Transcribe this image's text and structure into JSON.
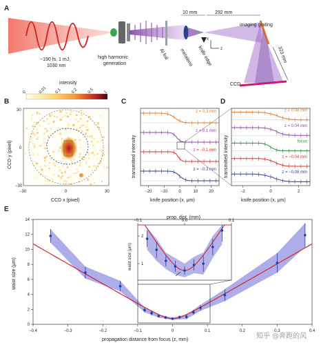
{
  "panel_labels": {
    "a": "A",
    "b": "B",
    "c": "C",
    "d": "D",
    "e": "E"
  },
  "setup": {
    "laser": "~190 fs, 1 mJ,",
    "laser2": "1030 nm",
    "hhg": "high harmonic",
    "hhg2": "generation",
    "al_foil": "Al foil",
    "metalens": "metalens",
    "knife": "knife edge",
    "d1": "10 mm",
    "d2": "292 mm",
    "d3": "323 mm",
    "grating": "imaging grating",
    "ccd": "CCD",
    "ax_x": "x",
    "ax_z": "z"
  },
  "panel_b": {
    "colorbar_title": "intensity",
    "colorbar_ticks": [
      "0",
      "0.01",
      "0.1",
      "0.2",
      "0.5",
      "1"
    ],
    "colors": [
      "#fffbe6",
      "#fde9a8",
      "#fbc96a",
      "#f39a3c",
      "#dc4d26",
      "#9e1b1b",
      "#3a0a0a"
    ],
    "xlabel": "CCD x (pixel)",
    "ylabel": "CCD y (pixel)",
    "xticks": [
      "−30",
      "0",
      "30"
    ],
    "yticks": [
      "30",
      "0",
      "−30"
    ]
  },
  "panel_c": {
    "xlabel": "knife position (x, μm)",
    "ylabel": "transmitted intensity",
    "xticks": [
      "−20",
      "−10",
      "0",
      "10",
      "20"
    ],
    "traces": [
      {
        "label": "z = 0.3 mm",
        "color": "#e07a2e",
        "edge": -3,
        "width": 5
      },
      {
        "label": "z = 0.1 mm",
        "color": "#8e44ad",
        "edge": -2,
        "width": 3
      },
      {
        "label": "z = −0.1 mm",
        "color": "#d9302b",
        "edge": -1,
        "width": 2.5
      },
      {
        "label": "z = −0.3 mm",
        "color": "#2c3e8c",
        "edge": 0,
        "width": 4
      }
    ]
  },
  "panel_d": {
    "xlabel": "knife position (x, μm)",
    "ylabel": "transmitted intensity",
    "xticks": [
      "−2",
      "0",
      "2"
    ],
    "traces": [
      {
        "label": "z = 0.08 mm",
        "color": "#e07a2e",
        "edge": 0.5,
        "width": 0.9
      },
      {
        "label": "z = 0.04 mm",
        "color": "#8e44ad",
        "edge": 0.4,
        "width": 0.7
      },
      {
        "label": "focus",
        "color": "#2e8b3e",
        "edge": 0.0,
        "width": 0.5
      },
      {
        "label": "z = −0.04 mm",
        "color": "#d9302b",
        "edge": 0.3,
        "width": 0.7
      },
      {
        "label": "z = −0.08 mm",
        "color": "#2c3e8c",
        "edge": 0.2,
        "width": 0.9
      }
    ]
  },
  "chart_data": {
    "type": "scatter",
    "xlabel": "propagation distance from focus (z, mm)",
    "ylabel": "waist size (μm)",
    "xlim": [
      -0.4,
      0.4
    ],
    "ylim": [
      0,
      14
    ],
    "xticks": [
      "−0.4",
      "−0.3",
      "−0.2",
      "−0.1",
      "0",
      "0.1",
      "0.2",
      "0.3",
      "0.4"
    ],
    "yticks": [
      "0",
      "2",
      "4",
      "6",
      "8",
      "10",
      "12",
      "14"
    ],
    "points": [
      {
        "x": -0.35,
        "y": 11.8,
        "err": 0.9
      },
      {
        "x": -0.25,
        "y": 6.9,
        "err": 0.8
      },
      {
        "x": -0.15,
        "y": 5.1,
        "err": 0.7
      },
      {
        "x": -0.08,
        "y": 1.9,
        "err": 0.3
      },
      {
        "x": -0.06,
        "y": 1.5,
        "err": 0.3
      },
      {
        "x": -0.04,
        "y": 1.1,
        "err": 0.2
      },
      {
        "x": -0.02,
        "y": 0.9,
        "err": 0.2
      },
      {
        "x": 0.0,
        "y": 0.75,
        "err": 0.15
      },
      {
        "x": 0.02,
        "y": 0.95,
        "err": 0.2
      },
      {
        "x": 0.04,
        "y": 1.0,
        "err": 0.3
      },
      {
        "x": 0.06,
        "y": 1.6,
        "err": 0.3
      },
      {
        "x": 0.08,
        "y": 2.2,
        "err": 0.4
      },
      {
        "x": 0.15,
        "y": 3.9,
        "err": 0.8
      },
      {
        "x": 0.3,
        "y": 8.2,
        "err": 1.3
      },
      {
        "x": 0.38,
        "y": 11.9,
        "err": 1.6
      }
    ],
    "band_upper": [
      [
        -0.35,
        12.7
      ],
      [
        -0.25,
        7.7
      ],
      [
        -0.15,
        5.8
      ],
      [
        -0.08,
        2.2
      ],
      [
        -0.04,
        1.3
      ],
      [
        0.0,
        0.9
      ],
      [
        0.04,
        1.3
      ],
      [
        0.08,
        2.6
      ],
      [
        0.15,
        4.7
      ],
      [
        0.3,
        9.5
      ],
      [
        0.38,
        13.5
      ]
    ],
    "band_lower": [
      [
        -0.35,
        10.9
      ],
      [
        -0.25,
        6.1
      ],
      [
        -0.15,
        4.4
      ],
      [
        -0.08,
        1.6
      ],
      [
        -0.04,
        0.9
      ],
      [
        0.0,
        0.6
      ],
      [
        0.04,
        0.7
      ],
      [
        0.08,
        1.8
      ],
      [
        0.15,
        3.1
      ],
      [
        0.3,
        6.9
      ],
      [
        0.38,
        10.3
      ]
    ],
    "colors": {
      "band": "#6a6ad8",
      "point": "#1f3fa8",
      "fit": "#d62728"
    },
    "inset": {
      "title": "prop. dist. (mm)",
      "xticks": [
        "−0.1",
        "0.0",
        "0.1"
      ],
      "ylabel": "waist size (μm)",
      "yticks": [
        "1",
        "2"
      ],
      "xlim": [
        -0.1,
        0.1
      ],
      "ylim": [
        0.4,
        2.4
      ]
    }
  },
  "watermark": "知乎 @奔跑的风"
}
